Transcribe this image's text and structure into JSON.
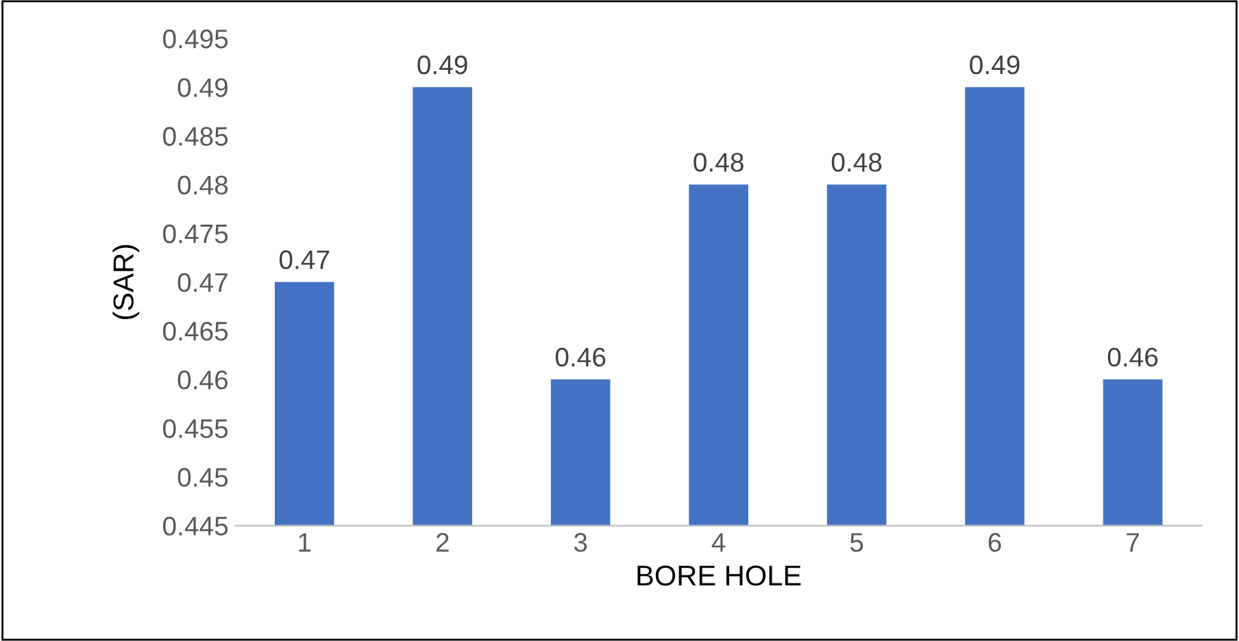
{
  "chart_data": {
    "type": "bar",
    "xlabel": "BORE HOLE",
    "ylabel": "(SAR)",
    "categories": [
      "1",
      "2",
      "3",
      "4",
      "5",
      "6",
      "7"
    ],
    "values": [
      0.47,
      0.49,
      0.46,
      0.48,
      0.48,
      0.49,
      0.46
    ],
    "color": "#4472c4",
    "ylim": [
      0.445,
      0.495
    ],
    "yticks": [
      0.445,
      0.45,
      0.455,
      0.46,
      0.465,
      0.47,
      0.475,
      0.48,
      0.485,
      0.49,
      0.495
    ],
    "data_labels": true,
    "grid": false
  }
}
